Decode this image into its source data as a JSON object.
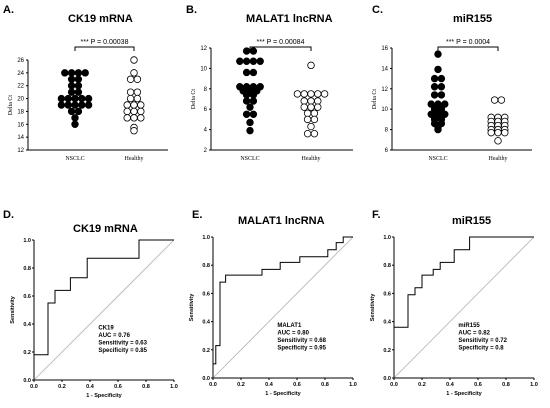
{
  "panels": {
    "A": {
      "letter": "A.",
      "title": "CK19 mRNA",
      "pvalue": "*** P = 0.00038"
    },
    "B": {
      "letter": "B.",
      "title": "MALAT1 lncRNA",
      "pvalue": "*** P = 0.00084"
    },
    "C": {
      "letter": "C.",
      "title": "miR155",
      "pvalue": "*** P = 0.0004"
    },
    "D": {
      "letter": "D.",
      "title": "CK19 mRNA"
    },
    "E": {
      "letter": "E.",
      "title": "MALAT1 lncRNA"
    },
    "F": {
      "letter": "F.",
      "title": "miR155"
    }
  },
  "chart_data": [
    {
      "id": "A",
      "type": "scatter",
      "title": "CK19 mRNA",
      "ylabel": "Delta Ct",
      "categories": [
        "NSCLC",
        "Healthy"
      ],
      "ylim": [
        12,
        26
      ],
      "yticks": [
        12,
        14,
        16,
        18,
        20,
        22,
        24,
        26
      ],
      "annotation": "*** P = 0.00038",
      "series": [
        {
          "category": "NSCLC",
          "marker": "filled",
          "values": [
            24.0,
            24.0,
            24.0,
            24.0,
            23.0,
            23.0,
            22.0,
            22.0,
            21.0,
            21.0,
            20.0,
            20.0,
            20.0,
            20.0,
            20.0,
            19.0,
            19.0,
            19.0,
            19.0,
            19.0,
            18.0,
            18.0,
            17.0,
            16.0
          ]
        },
        {
          "category": "Healthy",
          "marker": "open",
          "values": [
            26.0,
            24.0,
            23.0,
            23.0,
            21.0,
            21.0,
            20.0,
            20.0,
            19.0,
            19.0,
            19.0,
            18.0,
            18.0,
            18.0,
            17.0,
            17.0,
            17.0,
            15.5,
            15.0
          ]
        }
      ]
    },
    {
      "id": "B",
      "type": "scatter",
      "title": "MALAT1 lncRNA",
      "ylabel": "Delta Ct",
      "categories": [
        "NSCLC",
        "Healthy"
      ],
      "ylim": [
        2,
        12
      ],
      "yticks": [
        2,
        4,
        6,
        8,
        10,
        12
      ],
      "annotation": "*** P = 0.00084",
      "series": [
        {
          "category": "NSCLC",
          "marker": "filled",
          "values": [
            11.7,
            11.7,
            10.7,
            10.7,
            10.7,
            10.7,
            9.6,
            9.6,
            8.2,
            8.2,
            8.2,
            8.2,
            7.8,
            7.8,
            7.8,
            7.4,
            7.4,
            6.8,
            6.8,
            6.2,
            5.5,
            5.5,
            4.7,
            3.9
          ]
        },
        {
          "category": "Healthy",
          "marker": "open",
          "values": [
            10.3,
            7.5,
            7.5,
            7.5,
            7.5,
            7.5,
            6.8,
            6.8,
            6.8,
            6.2,
            6.2,
            6.2,
            5.6,
            5.6,
            5.0,
            5.0,
            4.3,
            3.6,
            3.6
          ]
        }
      ]
    },
    {
      "id": "C",
      "type": "scatter",
      "title": "miR155",
      "ylabel": "Delta Ct",
      "categories": [
        "NSCLC",
        "Healthy"
      ],
      "ylim": [
        6,
        16
      ],
      "yticks": [
        6,
        8,
        10,
        12,
        14,
        16
      ],
      "annotation": "*** P = 0.0004",
      "series": [
        {
          "category": "NSCLC",
          "marker": "filled",
          "values": [
            15.4,
            13.9,
            13.0,
            13.0,
            12.2,
            12.2,
            11.4,
            11.4,
            10.5,
            10.5,
            10.5,
            10.0,
            10.0,
            9.5,
            9.5,
            9.5,
            9.0,
            9.0,
            8.6,
            8.6,
            8.2,
            8.0
          ]
        },
        {
          "category": "Healthy",
          "marker": "open",
          "values": [
            10.9,
            10.9,
            9.2,
            9.2,
            9.2,
            8.8,
            8.8,
            8.8,
            8.4,
            8.4,
            8.4,
            8.0,
            8.0,
            8.0,
            7.7,
            7.7,
            7.7,
            6.9
          ]
        }
      ]
    },
    {
      "id": "D",
      "type": "line",
      "title": "CK19 mRNA",
      "xlabel": "1 - Specificity",
      "ylabel": "Sensitivity",
      "xlim": [
        0,
        1
      ],
      "ylim": [
        0,
        1
      ],
      "ticks": [
        "0.0",
        "0.2",
        "0.4",
        "0.6",
        "0.8",
        "1.0"
      ],
      "stats": [
        "CK19",
        "AUC = 0.76",
        "Sensitivity = 0.63",
        "Specificity = 0.85"
      ],
      "roc": [
        [
          0,
          0
        ],
        [
          0,
          0.18
        ],
        [
          0.1,
          0.18
        ],
        [
          0.1,
          0.55
        ],
        [
          0.15,
          0.55
        ],
        [
          0.15,
          0.64
        ],
        [
          0.26,
          0.64
        ],
        [
          0.26,
          0.73
        ],
        [
          0.38,
          0.73
        ],
        [
          0.38,
          0.87
        ],
        [
          0.75,
          0.87
        ],
        [
          0.75,
          1.0
        ],
        [
          1,
          1
        ]
      ],
      "reference": [
        [
          0,
          0
        ],
        [
          1,
          1
        ]
      ]
    },
    {
      "id": "E",
      "type": "line",
      "title": "MALAT1 lncRNA",
      "xlabel": "1 - Specificity",
      "ylabel": "Sensitivity",
      "xlim": [
        0,
        1
      ],
      "ylim": [
        0,
        1
      ],
      "ticks": [
        "0.0",
        "0.2",
        "0.4",
        "0.6",
        "0.8",
        "1.0"
      ],
      "stats": [
        "MALAT1",
        "AUC = 0.80",
        "Sensitivity = 0.68",
        "Specificity = 0.95"
      ],
      "roc": [
        [
          0,
          0
        ],
        [
          0,
          0.1
        ],
        [
          0.02,
          0.1
        ],
        [
          0.02,
          0.23
        ],
        [
          0.05,
          0.23
        ],
        [
          0.05,
          0.68
        ],
        [
          0.09,
          0.68
        ],
        [
          0.09,
          0.73
        ],
        [
          0.35,
          0.73
        ],
        [
          0.35,
          0.77
        ],
        [
          0.48,
          0.77
        ],
        [
          0.48,
          0.82
        ],
        [
          0.62,
          0.82
        ],
        [
          0.62,
          0.86
        ],
        [
          0.82,
          0.86
        ],
        [
          0.82,
          0.91
        ],
        [
          0.88,
          0.91
        ],
        [
          0.88,
          0.96
        ],
        [
          0.93,
          0.96
        ],
        [
          0.93,
          1.0
        ],
        [
          1,
          1
        ]
      ],
      "reference": [
        [
          0,
          0
        ],
        [
          1,
          1
        ]
      ]
    },
    {
      "id": "F",
      "type": "line",
      "title": "miR155",
      "xlabel": "1 - Specificity",
      "ylabel": "Sensitivity",
      "xlim": [
        0,
        1
      ],
      "ylim": [
        0,
        1
      ],
      "ticks": [
        "0.0",
        "0.2",
        "0.4",
        "0.6",
        "0.8",
        "1.0"
      ],
      "stats": [
        "miR155",
        "AUC = 0.82",
        "Sensitivity = 0.72",
        "Specificity = 0.8"
      ],
      "roc": [
        [
          0,
          0
        ],
        [
          0,
          0.36
        ],
        [
          0.1,
          0.36
        ],
        [
          0.1,
          0.59
        ],
        [
          0.15,
          0.59
        ],
        [
          0.15,
          0.64
        ],
        [
          0.2,
          0.64
        ],
        [
          0.2,
          0.73
        ],
        [
          0.28,
          0.73
        ],
        [
          0.28,
          0.77
        ],
        [
          0.33,
          0.77
        ],
        [
          0.33,
          0.82
        ],
        [
          0.43,
          0.82
        ],
        [
          0.43,
          0.91
        ],
        [
          0.54,
          0.91
        ],
        [
          0.54,
          1.0
        ],
        [
          1,
          1
        ]
      ],
      "reference": [
        [
          0,
          0
        ],
        [
          1,
          1
        ]
      ]
    }
  ]
}
